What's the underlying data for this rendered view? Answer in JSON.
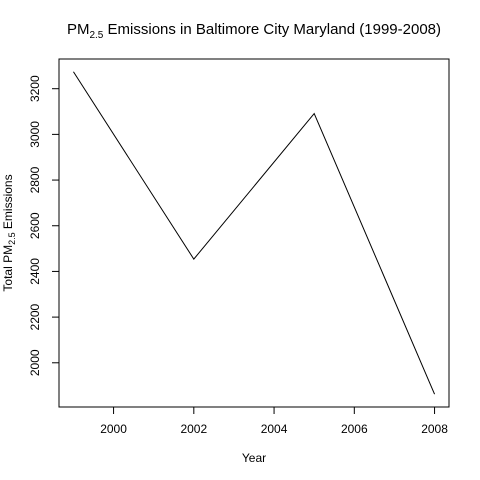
{
  "chart_data": {
    "type": "line",
    "title": {
      "main": "PM",
      "sub": "2.5",
      "rest": " Emissions in Baltimore City Maryland (1999-2008)"
    },
    "xlabel": "Year",
    "ylabel": {
      "main": "Total PM",
      "sub": "2.5",
      "rest": " Emissions"
    },
    "x": [
      1999,
      2002,
      2005,
      2008
    ],
    "series": [
      {
        "values": [
          3274.18,
          2453.92,
          3091.35,
          1862.28
        ]
      }
    ],
    "xlim": [
      1998.64,
      2008.36
    ],
    "ylim": [
      1806.42,
      3330.04
    ],
    "xticks": [
      2000,
      2002,
      2004,
      2006,
      2008
    ],
    "yticks": [
      2000,
      2200,
      2400,
      2600,
      2800,
      3000,
      3200
    ],
    "line_color": "#000000",
    "grid": false,
    "legend": "none"
  }
}
